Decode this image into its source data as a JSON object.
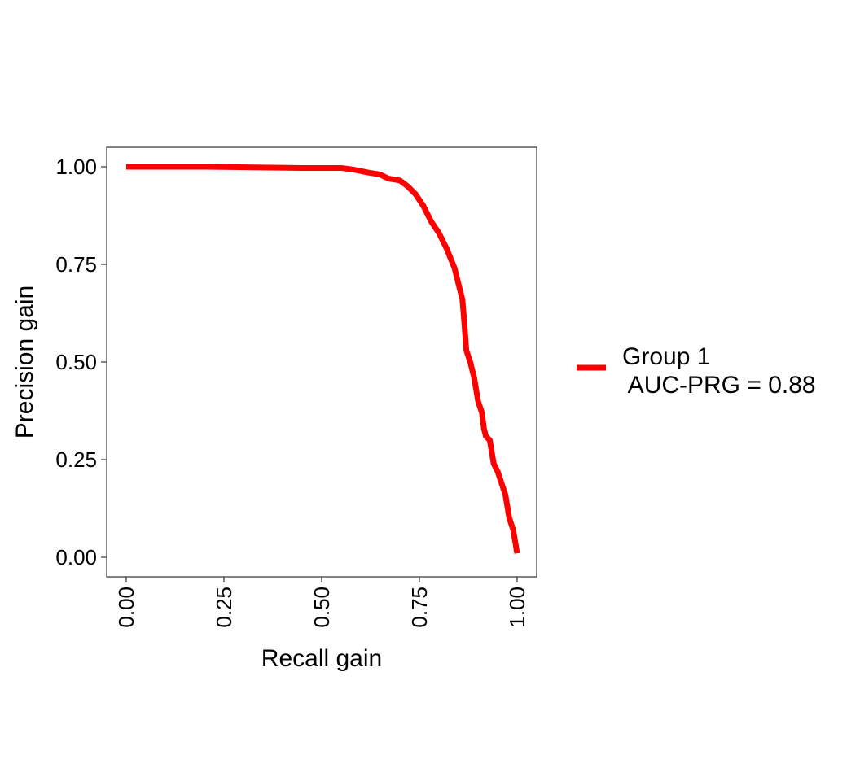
{
  "chart_data": {
    "type": "line",
    "title": "",
    "xlabel": "Recall gain",
    "ylabel": "Precision gain",
    "xlim": [
      -0.05,
      1.05
    ],
    "ylim": [
      -0.05,
      1.05
    ],
    "xticks": [
      "0.00",
      "0.25",
      "0.50",
      "0.75",
      "1.00"
    ],
    "yticks": [
      "0.00",
      "0.25",
      "0.50",
      "0.75",
      "1.00"
    ],
    "grid": false,
    "legend": {
      "position": "right",
      "label_line1": "Group 1",
      "label_line2": " AUC-PRG = 0.88"
    },
    "series": [
      {
        "name": "Group 1\n AUC-PRG = 0.88",
        "color": "#ff0000",
        "x": [
          0.0,
          0.2,
          0.37,
          0.45,
          0.55,
          0.58,
          0.62,
          0.65,
          0.67,
          0.7,
          0.72,
          0.74,
          0.76,
          0.78,
          0.8,
          0.82,
          0.84,
          0.85,
          0.86,
          0.865,
          0.87,
          0.88,
          0.885,
          0.89,
          0.895,
          0.9,
          0.91,
          0.915,
          0.92,
          0.93,
          0.935,
          0.94,
          0.95,
          0.96,
          0.97,
          0.975,
          0.98,
          0.99,
          0.995,
          1.0
        ],
        "y": [
          1.0,
          1.0,
          0.998,
          0.997,
          0.997,
          0.993,
          0.985,
          0.98,
          0.97,
          0.965,
          0.95,
          0.93,
          0.9,
          0.86,
          0.83,
          0.79,
          0.74,
          0.7,
          0.66,
          0.6,
          0.53,
          0.5,
          0.48,
          0.46,
          0.43,
          0.4,
          0.37,
          0.33,
          0.31,
          0.3,
          0.27,
          0.24,
          0.22,
          0.19,
          0.16,
          0.13,
          0.1,
          0.07,
          0.04,
          0.01
        ]
      }
    ]
  }
}
